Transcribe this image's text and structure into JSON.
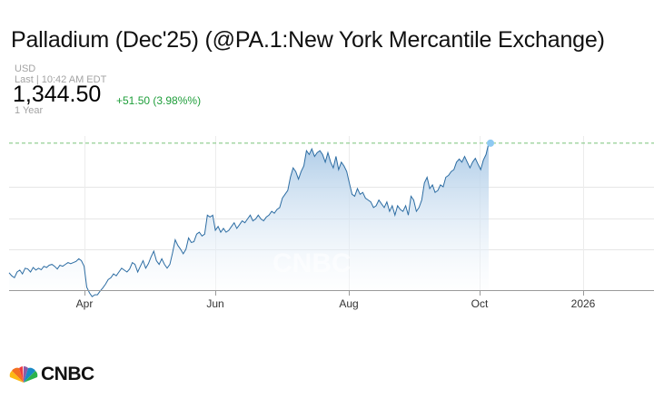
{
  "header": {
    "title": "Palladium (Dec'25) (@PA.1:New York Mercantile Exchange)",
    "currency": "USD",
    "last_label": "Last | 10:42 AM EDT",
    "price": "1,344.50",
    "change": "+51.50 (3.98%%)",
    "range_label": "1 Year"
  },
  "colors": {
    "line": "#2d6da3",
    "fill_top": "#a8c8e6",
    "change_green": "#1e9e3a",
    "dashed_line": "#79c479",
    "last_dot": "#8ec9f2"
  },
  "chart_data": {
    "type": "area",
    "title": "",
    "xlabel": "",
    "ylabel": "",
    "x_ticks": [
      "Apr",
      "Jun",
      "Aug",
      "Oct",
      "2026"
    ],
    "y_axis_labels_visible": false,
    "grid": "horizontal and vertical",
    "current_value_line": "dashed",
    "watermark": "CNBC",
    "series": [
      {
        "values": [
          998,
          990,
          985,
          1000,
          1005,
          995,
          1010,
          1008,
          1000,
          1012,
          1005,
          1010,
          1006,
          1015,
          1012,
          1018,
          1020,
          1015,
          1008,
          1018,
          1015,
          1020,
          1025,
          1022,
          1025,
          1028,
          1035,
          1030,
          1015,
          960,
          945,
          935,
          940,
          940,
          950,
          958,
          968,
          980,
          985,
          995,
          990,
          1000,
          1010,
          1005,
          1000,
          1008,
          1025,
          1020,
          1000,
          1015,
          1030,
          1010,
          1022,
          1040,
          1055,
          1030,
          1020,
          1035,
          1020,
          1010,
          1020,
          1050,
          1085,
          1070,
          1060,
          1048,
          1060,
          1090,
          1078,
          1080,
          1100,
          1105,
          1095,
          1100,
          1150,
          1145,
          1150,
          1110,
          1120,
          1105,
          1115,
          1105,
          1110,
          1120,
          1130,
          1115,
          1125,
          1135,
          1130,
          1140,
          1150,
          1135,
          1140,
          1150,
          1140,
          1135,
          1145,
          1150,
          1160,
          1155,
          1165,
          1170,
          1195,
          1205,
          1215,
          1250,
          1275,
          1265,
          1245,
          1265,
          1280,
          1320,
          1310,
          1325,
          1305,
          1315,
          1320,
          1310,
          1290,
          1315,
          1290,
          1275,
          1305,
          1270,
          1290,
          1280,
          1265,
          1235,
          1205,
          1200,
          1220,
          1205,
          1210,
          1195,
          1190,
          1185,
          1170,
          1175,
          1190,
          1180,
          1170,
          1185,
          1160,
          1175,
          1150,
          1175,
          1165,
          1160,
          1175,
          1150,
          1200,
          1190,
          1160,
          1170,
          1190,
          1235,
          1250,
          1220,
          1230,
          1210,
          1215,
          1230,
          1225,
          1250,
          1255,
          1265,
          1270,
          1290,
          1298,
          1290,
          1305,
          1290,
          1275,
          1290,
          1300,
          1285,
          1270,
          1295,
          1310,
          1340
        ]
      }
    ]
  }
}
